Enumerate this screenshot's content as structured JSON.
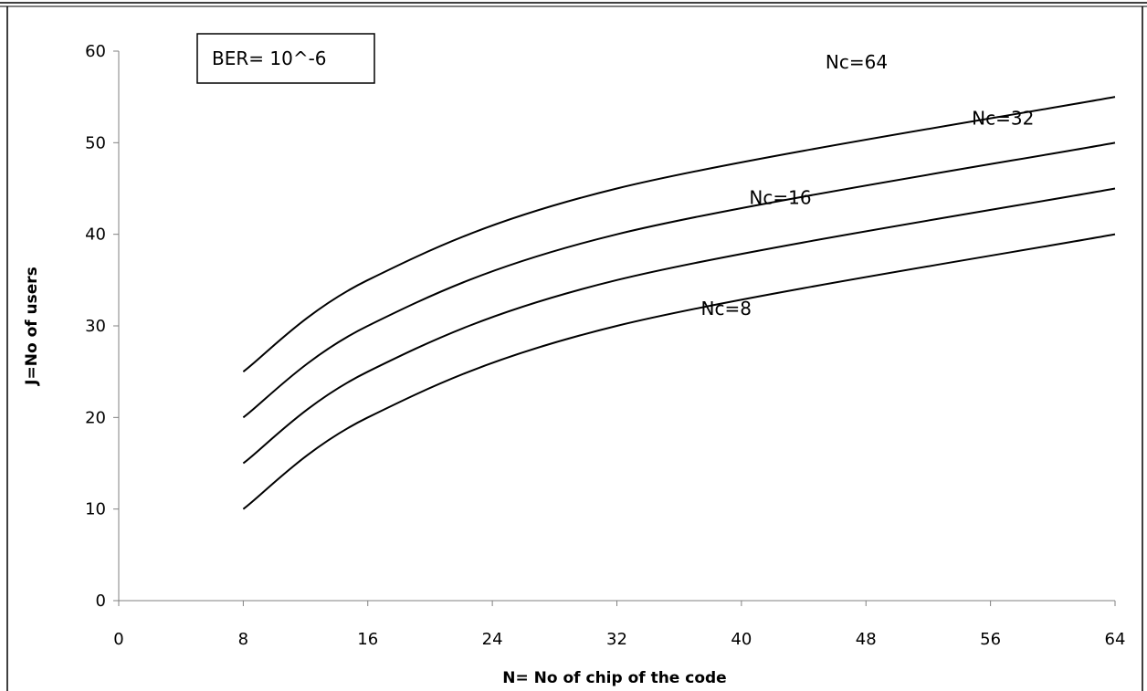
{
  "chart_data": {
    "type": "line",
    "xlabel": "N= No of chip of the code",
    "ylabel": "J=No of users",
    "xlim": [
      0,
      64
    ],
    "ylim": [
      0,
      60
    ],
    "xticks": [
      0,
      8,
      16,
      24,
      32,
      40,
      48,
      56,
      64
    ],
    "yticks": [
      0,
      10,
      20,
      30,
      40,
      50,
      60
    ],
    "annotation": "BER= 10^-6",
    "grid": false,
    "series": [
      {
        "name": "Nc=8",
        "x": [
          8,
          16,
          32,
          64
        ],
        "y": [
          10,
          20,
          30,
          40
        ]
      },
      {
        "name": "Nc=16",
        "x": [
          8,
          16,
          32,
          64
        ],
        "y": [
          15,
          25,
          35,
          45
        ]
      },
      {
        "name": "Nc=32",
        "x": [
          8,
          16,
          32,
          64
        ],
        "y": [
          20,
          30,
          40,
          50
        ]
      },
      {
        "name": "Nc=64",
        "x": [
          8,
          16,
          32,
          64
        ],
        "y": [
          25,
          35,
          45,
          55
        ]
      }
    ]
  }
}
